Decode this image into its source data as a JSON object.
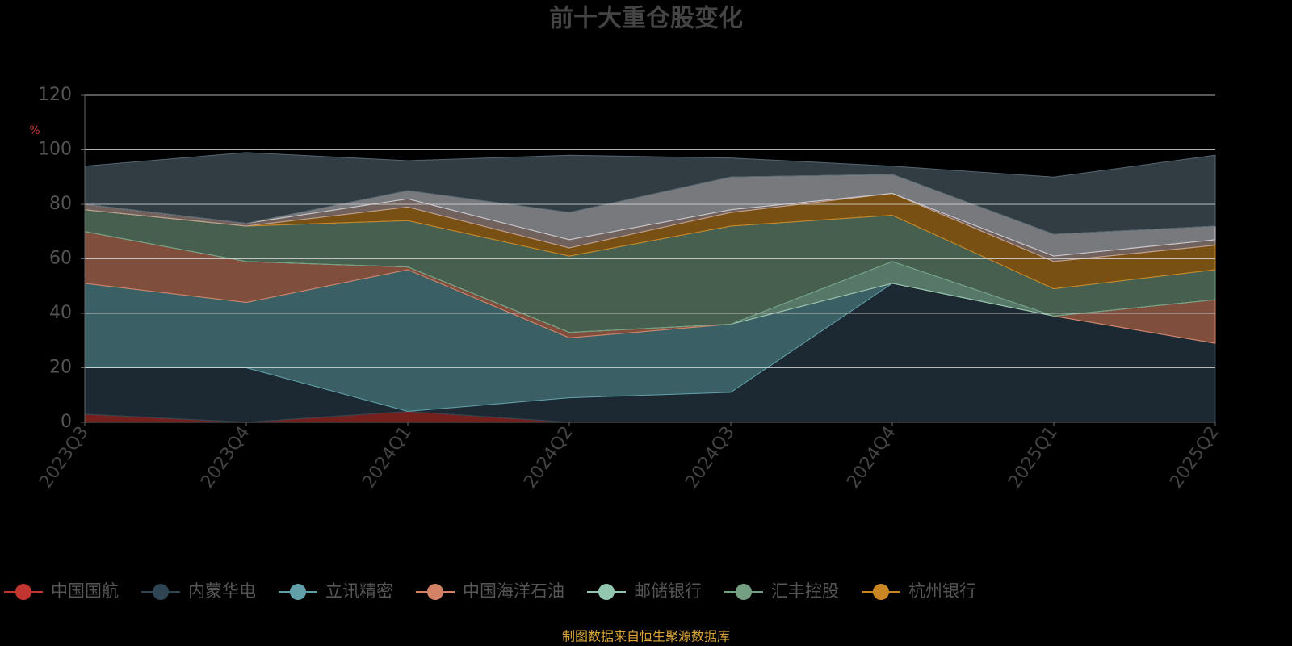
{
  "chart_data": {
    "type": "stacked-area",
    "title": "前十大重仓股变化",
    "y_label": "%",
    "footer": "制图数据来自恒生聚源数据库",
    "categories": [
      "2023Q3",
      "2023Q4",
      "2024Q1",
      "2024Q2",
      "2024Q3",
      "2024Q4",
      "2025Q1",
      "2025Q2"
    ],
    "ylim": [
      0,
      120
    ],
    "yticks": [
      0,
      20,
      40,
      60,
      80,
      100,
      120
    ],
    "grid": true,
    "series": [
      {
        "name": "中国国航",
        "color": "#c23531",
        "values": [
          3,
          0,
          4,
          0,
          0,
          0,
          0,
          0
        ]
      },
      {
        "name": "内蒙华电",
        "color": "#2f4554",
        "values": [
          17,
          20,
          0,
          9,
          11,
          51,
          39,
          29
        ]
      },
      {
        "name": "立讯精密",
        "color": "#61a0a8",
        "values": [
          31,
          24,
          52,
          22,
          25,
          0,
          0,
          0
        ]
      },
      {
        "name": "中国海洋石油",
        "color": "#d48265",
        "values": [
          19,
          15,
          1,
          2,
          0,
          0,
          0,
          16
        ]
      },
      {
        "name": "邮储银行",
        "color": "#91c7ae",
        "values": [
          0,
          0,
          0,
          0,
          0,
          8,
          0,
          0
        ]
      },
      {
        "name": "汇丰控股",
        "color": "#749f83",
        "values": [
          8,
          13,
          17,
          28,
          36,
          17,
          10,
          11
        ]
      },
      {
        "name": "杭州银行",
        "color": "#ca8622",
        "values": [
          0,
          0,
          5,
          3,
          5,
          8,
          10,
          9
        ]
      },
      {
        "color": "#bda29a",
        "values": [
          2,
          1,
          3,
          3,
          1,
          0,
          2,
          2
        ]
      },
      {
        "color": "#c7c9d0",
        "values": [
          0,
          0,
          3,
          10,
          12,
          7,
          8,
          5
        ]
      },
      {
        "color": "#546570",
        "values": [
          14,
          26,
          11,
          21,
          7,
          3,
          21,
          26
        ]
      }
    ]
  }
}
